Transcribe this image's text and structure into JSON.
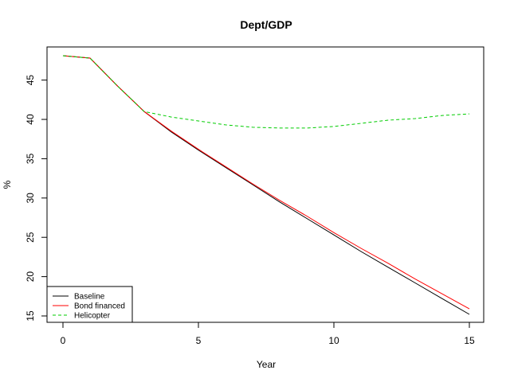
{
  "chart_data": {
    "type": "line",
    "title": "Dept/GDP",
    "xlabel": "Year",
    "ylabel": "%",
    "xlim": [
      0,
      15
    ],
    "ylim": [
      15,
      48
    ],
    "xticks": [
      0,
      5,
      10,
      15
    ],
    "yticks": [
      15,
      20,
      25,
      30,
      35,
      40,
      45
    ],
    "grid": false,
    "legend_position": "bottom-left",
    "x": [
      0,
      1,
      2,
      3,
      4,
      5,
      6,
      7,
      8,
      9,
      10,
      11,
      12,
      13,
      14,
      15
    ],
    "series": [
      {
        "name": "Baseline",
        "color": "#000000",
        "dash": "solid",
        "values": [
          48.1,
          47.8,
          44.3,
          41.0,
          38.4,
          36.1,
          33.9,
          31.7,
          29.5,
          27.4,
          25.3,
          23.2,
          21.2,
          19.2,
          17.2,
          15.2
        ]
      },
      {
        "name": "Bond financed",
        "color": "#ff0000",
        "dash": "solid",
        "values": [
          48.1,
          47.8,
          44.3,
          41.0,
          38.5,
          36.2,
          34.0,
          31.8,
          29.7,
          27.7,
          25.6,
          23.6,
          21.7,
          19.7,
          17.8,
          15.9
        ]
      },
      {
        "name": "Helicopter",
        "color": "#00cc00",
        "dash": "dashed",
        "values": [
          48.1,
          47.8,
          44.3,
          41.0,
          40.3,
          39.8,
          39.3,
          39.0,
          38.9,
          38.9,
          39.1,
          39.5,
          39.9,
          40.1,
          40.5,
          40.7
        ]
      }
    ]
  }
}
